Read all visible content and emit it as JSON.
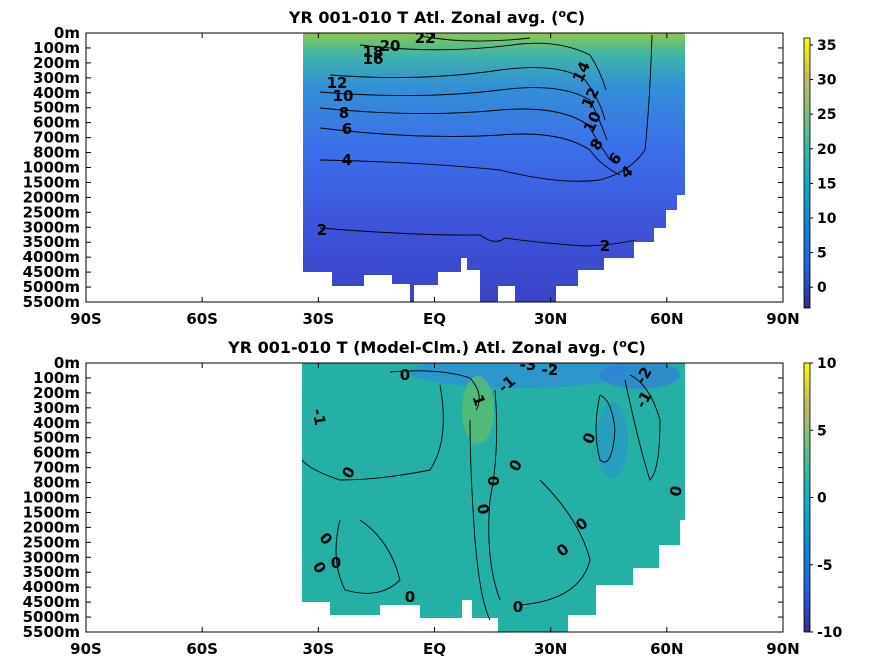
{
  "chart_data": [
    {
      "type": "heatmap",
      "title": "YR 001-010 T Atl. Zonal avg. (",
      "title_unit": "o",
      "title_tail": "C)",
      "x_ticks": [
        "90S",
        "60S",
        "30S",
        "EQ",
        "30N",
        "60N",
        "90N"
      ],
      "x_values": [
        -90,
        -60,
        -30,
        0,
        30,
        60,
        90
      ],
      "y_ticks": [
        "0m",
        "100m",
        "200m",
        "300m",
        "400m",
        "500m",
        "600m",
        "700m",
        "800m",
        "1000m",
        "1500m",
        "2000m",
        "2500m",
        "3000m",
        "3500m",
        "4000m",
        "4500m",
        "5000m",
        "5500m"
      ],
      "colorbar": {
        "ticks": [
          "35",
          "30",
          "25",
          "20",
          "15",
          "10",
          "5",
          "0"
        ],
        "range": [
          -3,
          36
        ]
      },
      "contour_labels": [
        "22",
        "20",
        "18",
        "16",
        "14",
        "12",
        "10",
        "8",
        "6",
        "4",
        "2"
      ],
      "colors": {
        "deep": "#3d40c9",
        "mid": "#3f7ce8",
        "warm": "#35a5c9",
        "surface": "#7fc857"
      }
    },
    {
      "type": "heatmap",
      "title": "YR 001-010 T (Model-Clm.) Atl. Zonal avg. (",
      "title_unit": "o",
      "title_tail": "C)",
      "x_ticks": [
        "90S",
        "60S",
        "30S",
        "EQ",
        "30N",
        "60N",
        "90N"
      ],
      "x_values": [
        -90,
        -60,
        -30,
        0,
        30,
        60,
        90
      ],
      "y_ticks": [
        "0m",
        "100m",
        "200m",
        "300m",
        "400m",
        "500m",
        "600m",
        "700m",
        "800m",
        "1000m",
        "1500m",
        "2000m",
        "2500m",
        "3000m",
        "3500m",
        "4000m",
        "4500m",
        "5000m",
        "5500m"
      ],
      "colorbar": {
        "ticks": [
          "10",
          "5",
          "0",
          "-5",
          "-10"
        ],
        "range": [
          -10,
          10
        ]
      },
      "contour_labels": [
        "-3",
        "-2",
        "-1",
        "0",
        "1"
      ],
      "colors": {
        "base": "#26b2a6",
        "cool": "#2e8fd6",
        "warm": "#5fbe6a"
      }
    }
  ]
}
